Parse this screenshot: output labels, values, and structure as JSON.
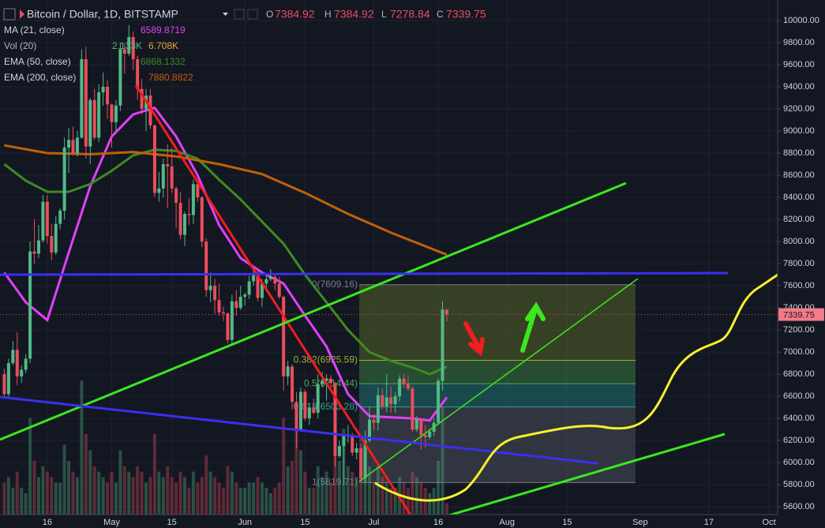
{
  "chart_data": {
    "type": "candlestick",
    "title": "Bitcoin / Dollar, 1D, BITSTAMP",
    "ohlc_names": [
      "O",
      "H",
      "L",
      "C"
    ],
    "up_color": "#53b987",
    "down_color": "#eb4d5c",
    "x": [
      "Apr 6",
      "Apr 7",
      "Apr 8",
      "Apr 9",
      "Apr 10",
      "Apr 11",
      "Apr 12",
      "Apr 13",
      "Apr 14",
      "Apr 15",
      "Apr 16",
      "Apr 17",
      "Apr 18",
      "Apr 19",
      "Apr 20",
      "Apr 21",
      "Apr 22",
      "Apr 23",
      "Apr 24",
      "Apr 25",
      "Apr 26",
      "Apr 27",
      "Apr 28",
      "Apr 29",
      "Apr 30",
      "May 1",
      "May 2",
      "May 3",
      "May 4",
      "May 5",
      "May 6",
      "May 7",
      "May 8",
      "May 9",
      "May 10",
      "May 11",
      "May 12",
      "May 13",
      "May 14",
      "May 15",
      "May 16",
      "May 17",
      "May 18",
      "May 19",
      "May 20",
      "May 21",
      "May 22",
      "May 23",
      "May 24",
      "May 25",
      "May 26",
      "May 27",
      "May 28",
      "May 29",
      "May 30",
      "May 31",
      "Jun 1",
      "Jun 2",
      "Jun 3",
      "Jun 4",
      "Jun 5",
      "Jun 6",
      "Jun 7",
      "Jun 8",
      "Jun 9",
      "Jun 10",
      "Jun 11",
      "Jun 12",
      "Jun 13",
      "Jun 14",
      "Jun 15",
      "Jun 16",
      "Jun 17",
      "Jun 18",
      "Jun 19",
      "Jun 20",
      "Jun 21",
      "Jun 22",
      "Jun 23",
      "Jun 24",
      "Jun 25",
      "Jun 26",
      "Jun 27",
      "Jun 28",
      "Jun 29",
      "Jun 30",
      "Jul 1",
      "Jul 2",
      "Jul 3",
      "Jul 4",
      "Jul 5",
      "Jul 6",
      "Jul 7",
      "Jul 8",
      "Jul 9",
      "Jul 10",
      "Jul 11",
      "Jul 12",
      "Jul 13",
      "Jul 14",
      "Jul 15",
      "Jul 16",
      "Jul 17",
      "Jul 18"
    ],
    "candles": [
      [
        6800,
        6850,
        6580,
        6620
      ],
      [
        6620,
        6940,
        6600,
        6900
      ],
      [
        6900,
        7100,
        6880,
        7020
      ],
      [
        7020,
        7180,
        6700,
        6780
      ],
      [
        6780,
        6880,
        6720,
        6840
      ],
      [
        6840,
        6980,
        6810,
        6940
      ],
      [
        6940,
        8000,
        6900,
        7910
      ],
      [
        7910,
        8200,
        7800,
        7890
      ],
      [
        7890,
        8150,
        7850,
        8010
      ],
      [
        8010,
        8420,
        7990,
        8360
      ],
      [
        8360,
        8420,
        7980,
        8050
      ],
      [
        8050,
        8160,
        7830,
        7900
      ],
      [
        7900,
        8230,
        7880,
        8160
      ],
      [
        8160,
        8300,
        8110,
        8280
      ],
      [
        8280,
        8940,
        8200,
        8850
      ],
      [
        8850,
        9030,
        8620,
        8920
      ],
      [
        8920,
        9040,
        8780,
        8800
      ],
      [
        8800,
        9000,
        8770,
        8940
      ],
      [
        8940,
        9740,
        8930,
        9650
      ],
      [
        9650,
        9760,
        8750,
        8860
      ],
      [
        8860,
        9300,
        8700,
        9280
      ],
      [
        9280,
        9380,
        8920,
        8940
      ],
      [
        8940,
        9420,
        8900,
        9350
      ],
      [
        9350,
        9530,
        9230,
        9400
      ],
      [
        9400,
        9460,
        9110,
        9240
      ],
      [
        9240,
        9250,
        8850,
        9080
      ],
      [
        9080,
        9280,
        9000,
        9230
      ],
      [
        9230,
        9800,
        9180,
        9740
      ],
      [
        9740,
        9790,
        9520,
        9700
      ],
      [
        9700,
        9960,
        9680,
        9850
      ],
      [
        9850,
        9900,
        9550,
        9650
      ],
      [
        9650,
        9680,
        9280,
        9380
      ],
      [
        9380,
        9470,
        9150,
        9200
      ],
      [
        9200,
        9380,
        9000,
        9320
      ],
      [
        9320,
        9380,
        9020,
        9050
      ],
      [
        9050,
        9060,
        8400,
        8440
      ],
      [
        8440,
        8630,
        8360,
        8480
      ],
      [
        8480,
        8750,
        8400,
        8700
      ],
      [
        8700,
        8880,
        8300,
        8680
      ],
      [
        8680,
        8850,
        8440,
        8480
      ],
      [
        8480,
        8500,
        8120,
        8350
      ],
      [
        8350,
        8450,
        8020,
        8060
      ],
      [
        8060,
        8270,
        7960,
        8250
      ],
      [
        8250,
        8390,
        8150,
        8240
      ],
      [
        8240,
        8560,
        8160,
        8520
      ],
      [
        8520,
        8560,
        8360,
        8400
      ],
      [
        8400,
        8410,
        7950,
        8000
      ],
      [
        8000,
        8030,
        7500,
        7560
      ],
      [
        7560,
        7720,
        7450,
        7600
      ],
      [
        7600,
        7660,
        7350,
        7470
      ],
      [
        7470,
        7620,
        7330,
        7360
      ],
      [
        7360,
        7410,
        7280,
        7350
      ],
      [
        7350,
        7360,
        7080,
        7110
      ],
      [
        7110,
        7520,
        7070,
        7460
      ],
      [
        7460,
        7560,
        7330,
        7400
      ],
      [
        7400,
        7600,
        7380,
        7500
      ],
      [
        7500,
        7540,
        7420,
        7520
      ],
      [
        7520,
        7690,
        7480,
        7640
      ],
      [
        7640,
        7770,
        7600,
        7710
      ],
      [
        7710,
        7750,
        7460,
        7490
      ],
      [
        7490,
        7660,
        7410,
        7620
      ],
      [
        7620,
        7700,
        7550,
        7660
      ],
      [
        7660,
        7750,
        7640,
        7680
      ],
      [
        7680,
        7700,
        7560,
        7620
      ],
      [
        7620,
        7680,
        7480,
        7500
      ],
      [
        7500,
        7510,
        6650,
        6780
      ],
      [
        6780,
        6920,
        6700,
        6870
      ],
      [
        6870,
        6890,
        6480,
        6550
      ],
      [
        6550,
        6640,
        6130,
        6300
      ],
      [
        6300,
        6680,
        6280,
        6640
      ],
      [
        6640,
        6660,
        6380,
        6400
      ],
      [
        6400,
        6540,
        6340,
        6500
      ],
      [
        6500,
        6580,
        6440,
        6450
      ],
      [
        6450,
        6800,
        6400,
        6710
      ],
      [
        6710,
        6820,
        6680,
        6740
      ],
      [
        6740,
        6800,
        6560,
        6760
      ],
      [
        6760,
        6790,
        6680,
        6720
      ],
      [
        6720,
        6730,
        5960,
        6060
      ],
      [
        6060,
        6200,
        6040,
        6150
      ],
      [
        6150,
        6250,
        5800,
        6240
      ],
      [
        6240,
        6340,
        6180,
        6250
      ],
      [
        6250,
        6270,
        6060,
        6090
      ],
      [
        6090,
        6180,
        6030,
        6130
      ],
      [
        6130,
        6170,
        5830,
        5860
      ],
      [
        5860,
        6290,
        5820,
        6200
      ],
      [
        6200,
        6510,
        6180,
        6390
      ],
      [
        6390,
        6440,
        6290,
        6360
      ],
      [
        6360,
        6680,
        6290,
        6610
      ],
      [
        6610,
        6670,
        6480,
        6510
      ],
      [
        6510,
        6800,
        6460,
        6590
      ],
      [
        6590,
        6690,
        6450,
        6530
      ],
      [
        6530,
        6640,
        6450,
        6600
      ],
      [
        6600,
        6790,
        6550,
        6760
      ],
      [
        6760,
        6800,
        6680,
        6710
      ],
      [
        6710,
        6790,
        6650,
        6670
      ],
      [
        6670,
        6690,
        6280,
        6300
      ],
      [
        6300,
        6420,
        6280,
        6390
      ],
      [
        6390,
        6400,
        6120,
        6250
      ],
      [
        6250,
        6340,
        6140,
        6230
      ],
      [
        6230,
        6310,
        6210,
        6280
      ],
      [
        6280,
        6400,
        6240,
        6360
      ],
      [
        6360,
        6760,
        6340,
        6740
      ],
      [
        6740,
        7460,
        6650,
        7384.92
      ],
      [
        7384.92,
        7384.92,
        7278.84,
        7339.75
      ]
    ],
    "volumes": [
      6,
      7,
      5,
      8,
      5,
      4,
      18,
      10,
      7,
      9,
      8,
      7,
      6,
      6,
      13,
      10,
      8,
      7,
      25,
      15,
      12,
      9,
      8,
      7,
      6,
      8,
      6,
      12,
      9,
      8,
      7,
      9,
      8,
      6,
      7,
      15,
      8,
      7,
      9,
      7,
      6,
      8,
      7,
      5,
      8,
      6,
      7,
      11,
      8,
      7,
      6,
      5,
      9,
      8,
      6,
      5,
      5,
      6,
      6,
      7,
      6,
      5,
      4,
      5,
      6,
      18,
      9,
      10,
      17,
      12,
      8,
      5,
      5,
      9,
      7,
      8,
      6,
      20,
      10,
      16,
      9,
      8,
      7,
      12,
      11,
      9,
      6,
      9,
      7,
      6,
      5,
      5,
      7,
      6,
      5,
      8,
      7,
      6,
      5,
      4,
      5,
      10,
      20,
      2.133
    ],
    "volume_legend": {
      "name": "Vol (20)",
      "value_labels": [
        "2.133K",
        "6.708K"
      ]
    },
    "indicators": [
      {
        "name": "MA (21, close)",
        "color": "#e040fb",
        "width": 3,
        "x": [
          "Apr 6",
          "Apr 11",
          "Apr 16",
          "Apr 21",
          "Apr 26",
          "May 1",
          "May 6",
          "May 11",
          "May 16",
          "May 21",
          "May 26",
          "May 31",
          "Jun 5",
          "Jun 10",
          "Jun 15",
          "Jun 20",
          "Jun 25",
          "Jun 30",
          "Jul 5",
          "Jul 10",
          "Jul 14",
          "Jul 18"
        ],
        "values": [
          7720,
          7450,
          7290,
          7900,
          8500,
          8950,
          9150,
          9210,
          8950,
          8600,
          8150,
          7850,
          7720,
          7620,
          7330,
          7050,
          6620,
          6420,
          6410,
          6400,
          6380,
          6589.8719
        ]
      },
      {
        "name": "EMA (50, close)",
        "color": "#3d8b22",
        "width": 3,
        "x": [
          "Apr 6",
          "Apr 11",
          "Apr 16",
          "Apr 21",
          "Apr 26",
          "May 1",
          "May 6",
          "May 11",
          "May 16",
          "May 21",
          "May 26",
          "May 31",
          "Jun 5",
          "Jun 10",
          "Jun 15",
          "Jun 20",
          "Jun 25",
          "Jun 30",
          "Jul 5",
          "Jul 10",
          "Jul 14",
          "Jul 18"
        ],
        "values": [
          8700,
          8550,
          8450,
          8450,
          8520,
          8640,
          8780,
          8830,
          8820,
          8750,
          8560,
          8380,
          8180,
          7980,
          7700,
          7450,
          7200,
          7000,
          6920,
          6860,
          6800,
          6868.1332
        ]
      },
      {
        "name": "EMA (200, close)",
        "color": "#c0600a",
        "width": 3,
        "x": [
          "Apr 6",
          "Apr 16",
          "Apr 26",
          "May 6",
          "May 16",
          "May 26",
          "Jun 5",
          "Jun 15",
          "Jun 25",
          "Jul 5",
          "Jul 18"
        ],
        "values": [
          8870,
          8800,
          8790,
          8810,
          8770,
          8700,
          8610,
          8440,
          8250,
          8080,
          7880.8822
        ]
      }
    ],
    "fib_levels": [
      {
        "label": "0(7609.16)",
        "value": 7609.16,
        "color": "#787b86"
      },
      {
        "label": "0.382(6925.59)",
        "value": 6925.59,
        "color": "#9db22c"
      },
      {
        "label": "0.5(6714.44)",
        "value": 6714.44,
        "color": "#4caf50"
      },
      {
        "label": "0.618(6503.28)",
        "value": 6503.28,
        "color": "#26a69a"
      },
      {
        "label": "1(5819.71)",
        "value": 5819.71,
        "color": "#787b86"
      }
    ],
    "xlim": [
      "Apr 5",
      "Oct 3"
    ],
    "xticks": [
      {
        "value": "Apr 16",
        "label": "16"
      },
      {
        "value": "May 1",
        "label": "May"
      },
      {
        "value": "May 15",
        "label": "15"
      },
      {
        "value": "Jun 1",
        "label": "Jun"
      },
      {
        "value": "Jun 15",
        "label": "15"
      },
      {
        "value": "Jul 1",
        "label": "Jul"
      },
      {
        "value": "Jul 16",
        "label": "16"
      },
      {
        "value": "Aug 1",
        "label": "Aug"
      },
      {
        "value": "Aug 15",
        "label": "15"
      },
      {
        "value": "Sep 1",
        "label": "Sep"
      },
      {
        "value": "Sep 17",
        "label": "17"
      },
      {
        "value": "Oct 1",
        "label": "Oct"
      }
    ],
    "ylim": [
      5530,
      10185
    ],
    "yticks": [
      {
        "value": 5600,
        "label": "5600.00"
      },
      {
        "value": 5800,
        "label": "5800.00"
      },
      {
        "value": 6000,
        "label": "6000.00"
      },
      {
        "value": 6200,
        "label": "6200.00"
      },
      {
        "value": 6400,
        "label": "6400.00"
      },
      {
        "value": 6600,
        "label": "6600.00"
      },
      {
        "value": 6800,
        "label": "6800.00"
      },
      {
        "value": 7000,
        "label": "7000.00"
      },
      {
        "value": 7200,
        "label": "7200.00"
      },
      {
        "value": 7400,
        "label": "7400.00"
      },
      {
        "value": 7600,
        "label": "7600.00"
      },
      {
        "value": 7800,
        "label": "7800.00"
      },
      {
        "value": 8000,
        "label": "8000.00"
      },
      {
        "value": 8200,
        "label": "8200.00"
      },
      {
        "value": 8400,
        "label": "8400.00"
      },
      {
        "value": 8600,
        "label": "8600.00"
      },
      {
        "value": 8800,
        "label": "8800.00"
      },
      {
        "value": 9000,
        "label": "9000.00"
      },
      {
        "value": 9200,
        "label": "9200.00"
      },
      {
        "value": 9400,
        "label": "9400.00"
      },
      {
        "value": 9600,
        "label": "9600.00"
      },
      {
        "value": 9800,
        "label": "9800.00"
      },
      {
        "value": 10000,
        "label": "10000.00"
      }
    ],
    "grid": true
  }
}
